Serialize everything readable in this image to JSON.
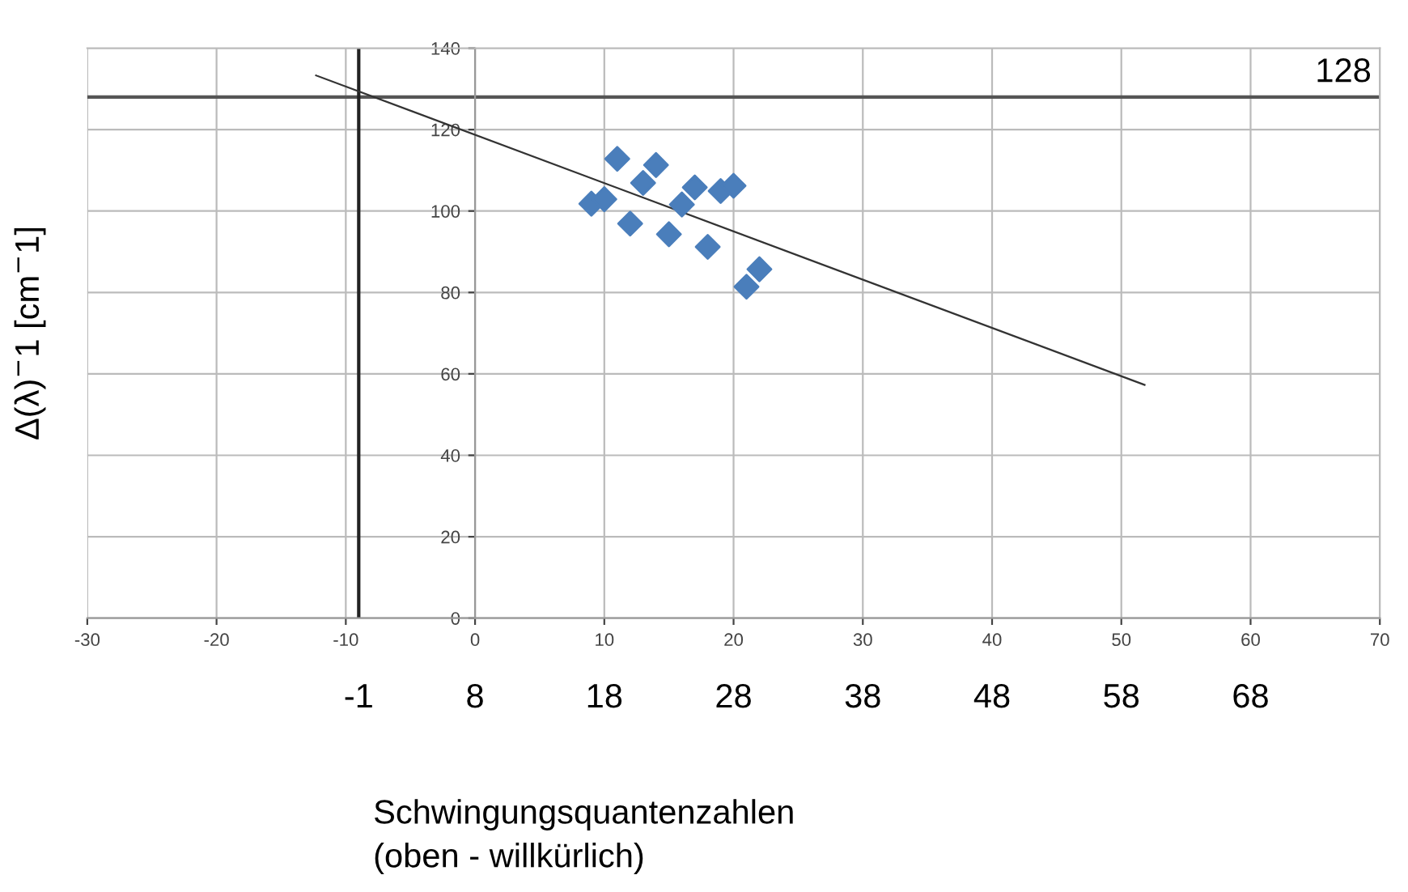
{
  "chart_data": {
    "type": "scatter",
    "xlabel": "Schwingungsquantenzahlen\n(oben - willkürlich)",
    "ylabel": "Δ(λ)$^{−}$1 [cm$^{−}$1]",
    "x": [
      9,
      10,
      11,
      12,
      13,
      14,
      15,
      16,
      17,
      18,
      19,
      20,
      21,
      22
    ],
    "series": [
      {
        "color": "#4a7ebb",
        "marker": "diamond",
        "values": [
          101.8,
          102.9,
          112.8,
          96.9,
          106.9,
          111.3,
          94.3,
          101.6,
          105.8,
          91.2,
          104.9,
          106.2,
          81.4,
          85.7
        ]
      },
      {
        "type": "line",
        "color": "#333333",
        "marker": "none",
        "x": [
          -12.3,
          51.8
        ],
        "values": [
          133.3,
          57.3
        ]
      }
    ],
    "xlim": [
      -30,
      70
    ],
    "xticks": [
      -30,
      -20,
      -10,
      0,
      10,
      20,
      30,
      40,
      50,
      60,
      70
    ],
    "ylim": [
      0,
      140
    ],
    "yticks": [
      0,
      20,
      40,
      60,
      80,
      100,
      120,
      140
    ],
    "x2lim": [
      -22,
      78
    ],
    "x2ticks": [
      -1,
      8,
      18,
      28,
      38,
      48,
      58,
      68
    ],
    "ref_lines": [
      {
        "axis": "y",
        "value": 128,
        "color": "#555555"
      },
      {
        "axis": "x",
        "value": -9,
        "color": "#222222"
      }
    ],
    "annotations": [
      {
        "text": "128",
        "x": 65,
        "y": 128
      }
    ],
    "grid": true
  }
}
